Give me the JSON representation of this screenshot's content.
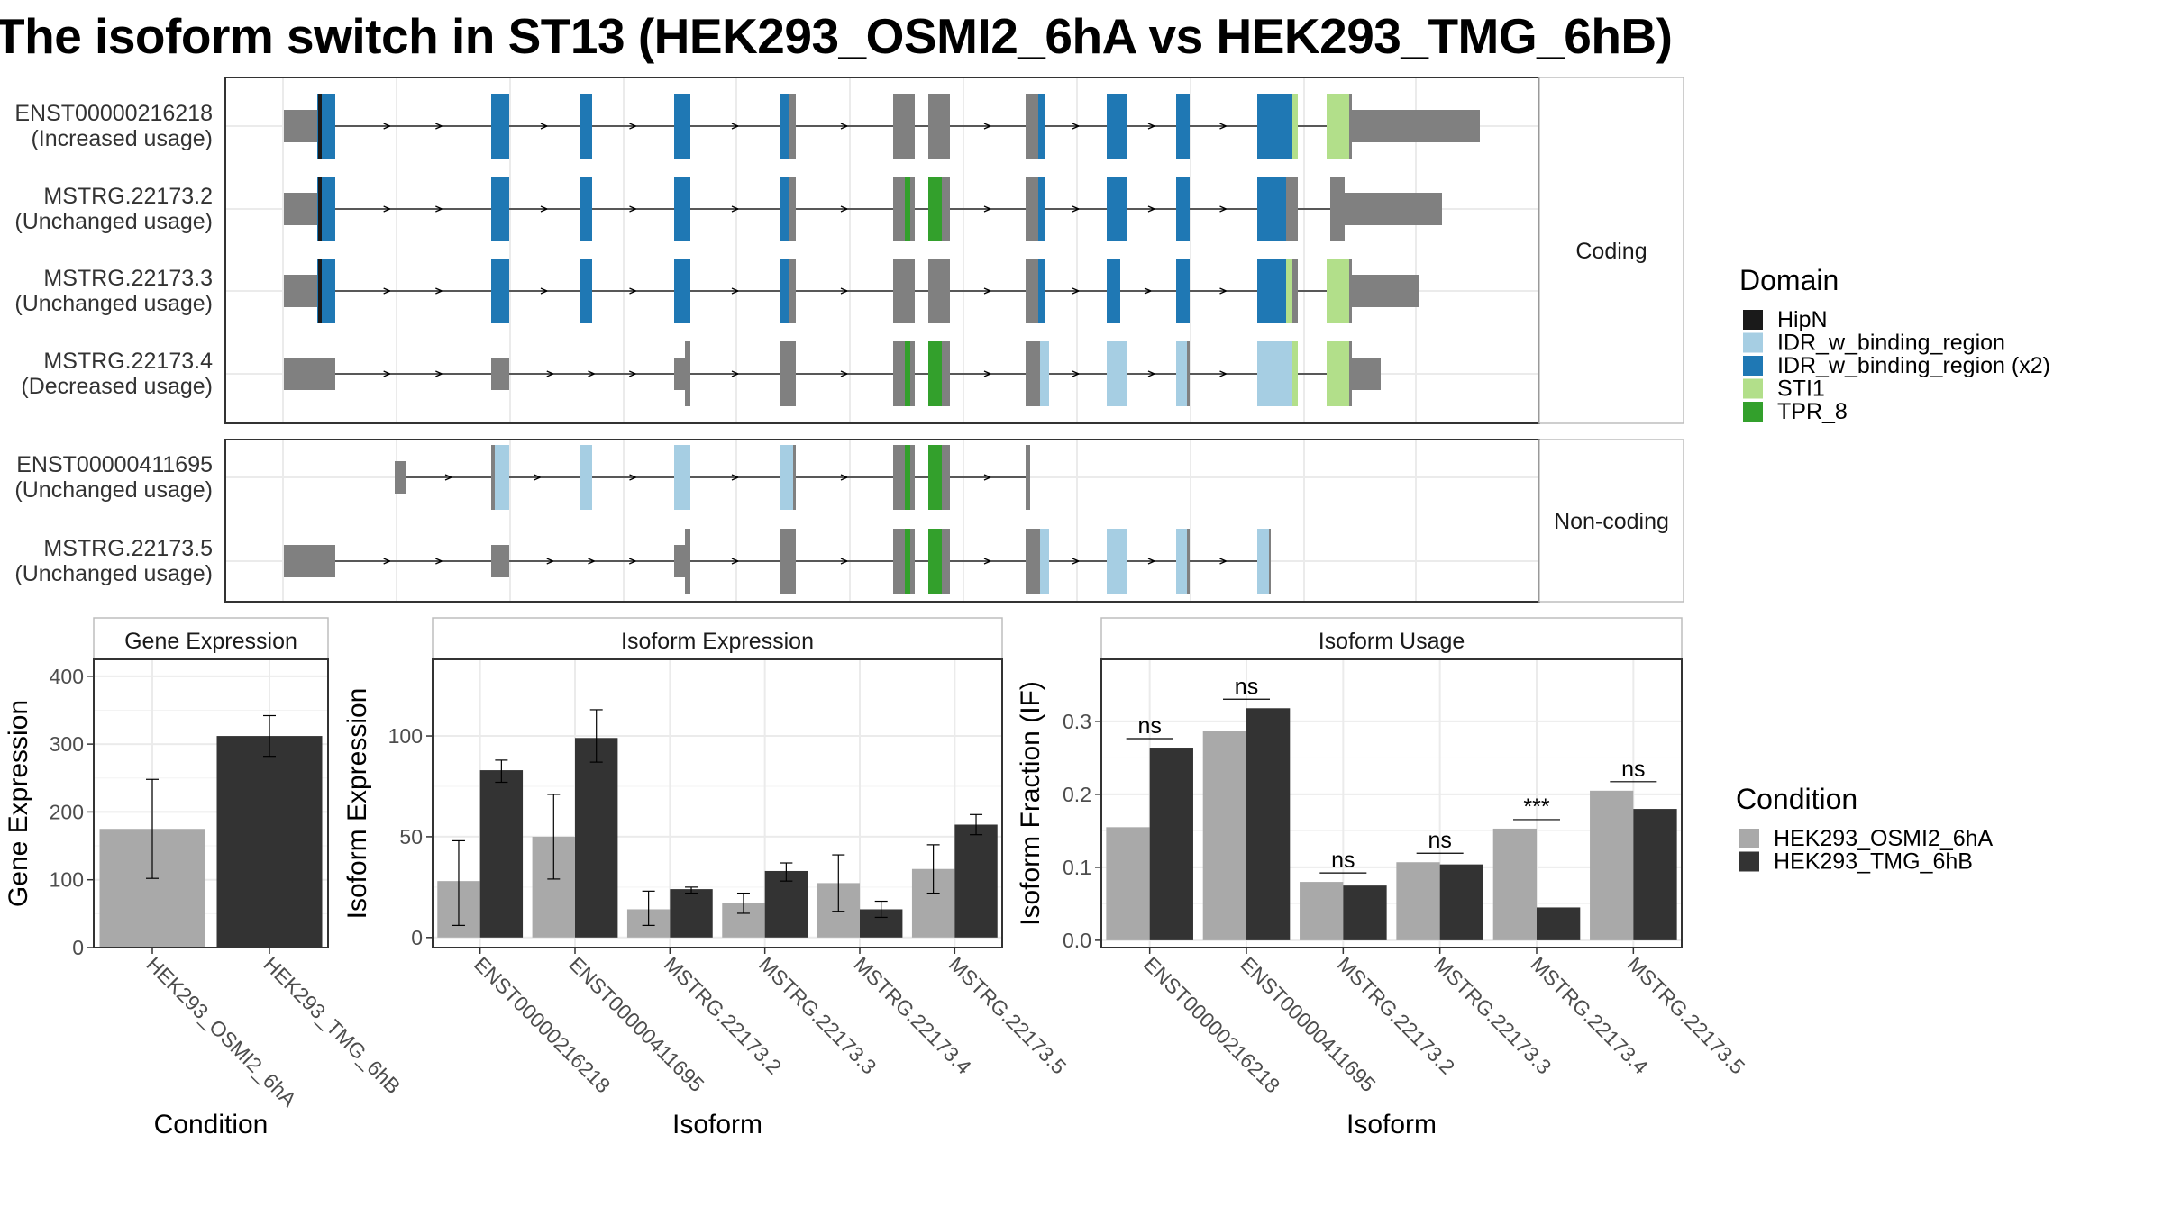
{
  "title": "The isoform switch in ST13 (HEK293_OSMI2_6hA vs HEK293_TMG_6hB)",
  "colors": {
    "HipN": "#1a1a1a",
    "IDR_w_binding_region": "#a6cee3",
    "IDR_w_binding_region (x2)": "#1f78b4",
    "STI1": "#b2df8a",
    "TPR_8": "#33a02c",
    "exon": "#808080",
    "cond_a": "#a9a9a9",
    "cond_b": "#333333"
  },
  "structure": {
    "facets": [
      "Coding",
      "Non-coding"
    ],
    "isoforms": [
      {
        "id": "ENST00000216218",
        "usage": "(Increased usage)",
        "facet": "Coding"
      },
      {
        "id": "MSTRG.22173.2",
        "usage": "(Unchanged usage)",
        "facet": "Coding"
      },
      {
        "id": "MSTRG.22173.3",
        "usage": "(Unchanged usage)",
        "facet": "Coding"
      },
      {
        "id": "MSTRG.22173.4",
        "usage": "(Decreased usage)",
        "facet": "Coding"
      },
      {
        "id": "ENST00000411695",
        "usage": "(Unchanged usage)",
        "facet": "Non-coding"
      },
      {
        "id": "MSTRG.22173.5",
        "usage": "(Unchanged usage)",
        "facet": "Non-coding"
      }
    ]
  },
  "legend_domain": {
    "title": "Domain",
    "items": [
      "HipN",
      "IDR_w_binding_region",
      "IDR_w_binding_region (x2)",
      "STI1",
      "TPR_8"
    ]
  },
  "legend_condition": {
    "title": "Condition",
    "items": [
      "HEK293_OSMI2_6hA",
      "HEK293_TMG_6hB"
    ]
  },
  "chart_data": [
    {
      "type": "bar",
      "title": "Gene Expression",
      "xlabel": "Condition",
      "ylabel": "Gene Expression",
      "categories": [
        "HEK293_OSMI2_6hA",
        "HEK293_TMG_6hB"
      ],
      "values": [
        175,
        312
      ],
      "error_low": [
        102,
        282
      ],
      "error_high": [
        248,
        342
      ],
      "ylim": [
        0,
        425
      ],
      "yticks": [
        0,
        100,
        200,
        300,
        400
      ]
    },
    {
      "type": "bar",
      "title": "Isoform Expression",
      "xlabel": "Isoform",
      "ylabel": "Isoform Expression",
      "categories": [
        "ENST00000216218",
        "ENST00000411695",
        "MSTRG.22173.2",
        "MSTRG.22173.3",
        "MSTRG.22173.4",
        "MSTRG.22173.5"
      ],
      "series": [
        {
          "name": "HEK293_OSMI2_6hA",
          "values": [
            28,
            50,
            14,
            17,
            27,
            34
          ],
          "error_low": [
            6,
            29,
            6,
            12,
            13,
            22
          ],
          "error_high": [
            48,
            71,
            23,
            22,
            41,
            46
          ]
        },
        {
          "name": "HEK293_TMG_6hB",
          "values": [
            83,
            99,
            24,
            33,
            14,
            56
          ],
          "error_low": [
            77,
            87,
            22,
            28,
            10,
            51
          ],
          "error_high": [
            88,
            113,
            25,
            37,
            18,
            61
          ]
        }
      ],
      "ylim": [
        -5,
        138
      ],
      "yticks": [
        0,
        50,
        100
      ]
    },
    {
      "type": "bar",
      "title": "Isoform Usage",
      "xlabel": "Isoform",
      "ylabel": "Isoform Fraction (IF)",
      "categories": [
        "ENST00000216218",
        "ENST00000411695",
        "MSTRG.22173.2",
        "MSTRG.22173.3",
        "MSTRG.22173.4",
        "MSTRG.22173.5"
      ],
      "series": [
        {
          "name": "HEK293_OSMI2_6hA",
          "values": [
            0.155,
            0.287,
            0.08,
            0.107,
            0.153,
            0.205
          ]
        },
        {
          "name": "HEK293_TMG_6hB",
          "values": [
            0.264,
            0.318,
            0.075,
            0.104,
            0.045,
            0.18
          ]
        }
      ],
      "significance": [
        "ns",
        "ns",
        "ns",
        "ns",
        "***",
        "ns"
      ],
      "ylim": [
        -0.01,
        0.385
      ],
      "yticks": [
        0.0,
        0.1,
        0.2,
        0.3
      ]
    }
  ]
}
